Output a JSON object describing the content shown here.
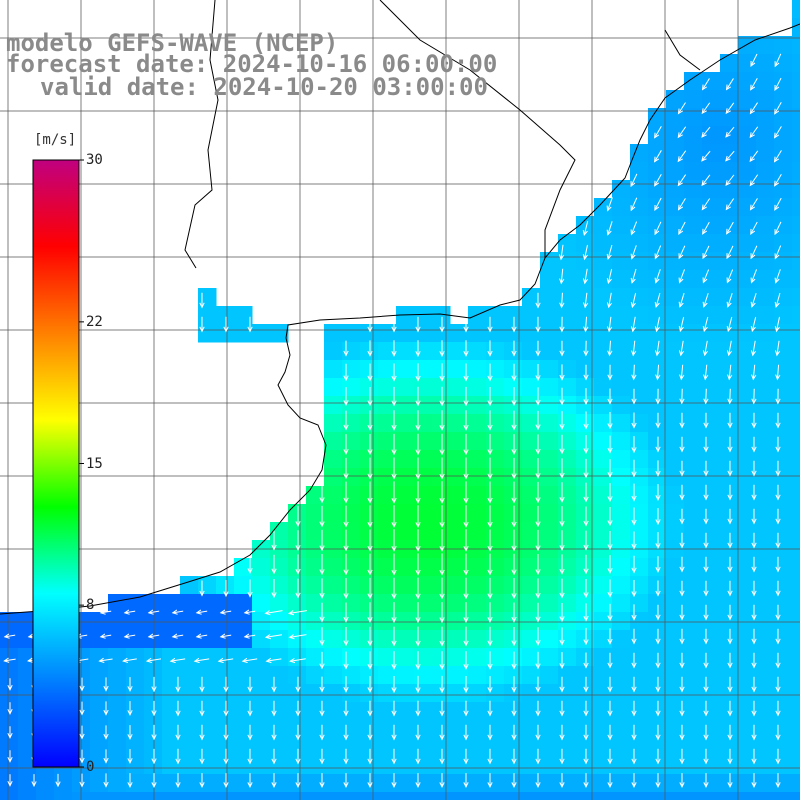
{
  "header": {
    "line1": "modelo GEFS-WAVE (NCEP)",
    "line2": "forecast date: 2024-10-16 06:00:00",
    "line3": "valid date: 2024-10-20 03:00:00"
  },
  "colorbar": {
    "unit": "[m/s]",
    "min": 0,
    "max": 30,
    "ticks": [
      30,
      22,
      15,
      8,
      0
    ],
    "colors": [
      "#0000ff",
      "#0080ff",
      "#00ffff",
      "#00ff00",
      "#ffff00",
      "#ff8000",
      "#ff0000",
      "#c00080"
    ]
  },
  "colors": {
    "land": "#ffffff",
    "grid": "#555555",
    "coastline": "#000000",
    "arrows": "#ffffff",
    "title_text": "#8a8a8a"
  },
  "chart_data": {
    "type": "heatmap",
    "variable": "wind speed with direction arrows",
    "title": "modelo GEFS-WAVE (NCEP)",
    "unit": "m/s",
    "zlim": [
      0,
      30
    ],
    "grid": true,
    "prevailing_flow": "from north to south over the open ocean, from north-east to south-west near the coast",
    "speed_regions": [
      {
        "region": "central ocean core",
        "speed": 12
      },
      {
        "region": "southern coastal band",
        "speed": 10
      },
      {
        "region": "north-east coast",
        "speed": 5
      },
      {
        "region": "far south-west",
        "speed": 4
      }
    ]
  }
}
